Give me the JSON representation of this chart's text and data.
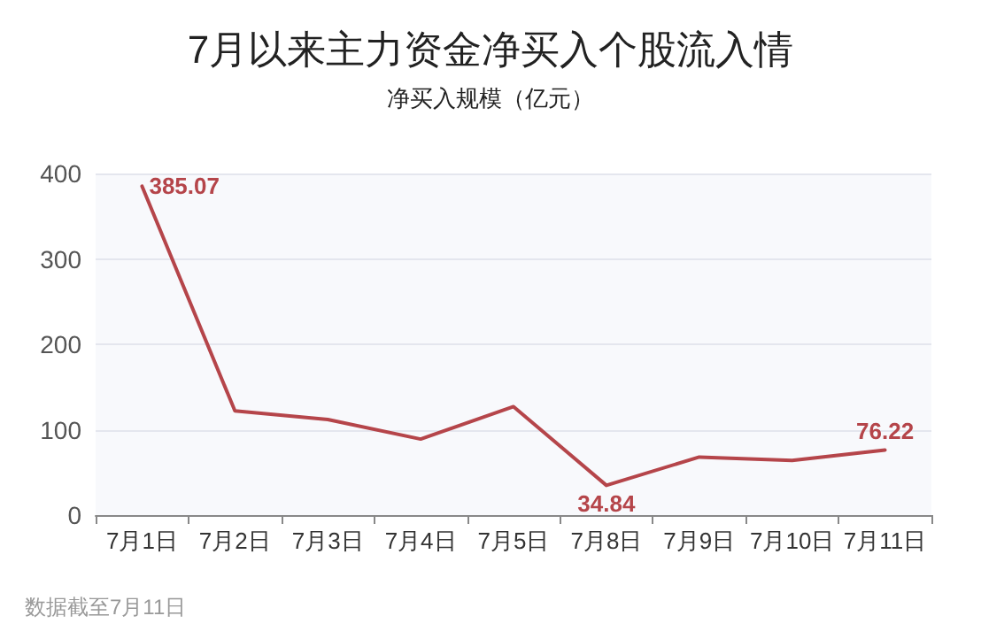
{
  "chart_data": {
    "type": "line",
    "title": "7月以来主力资金净买入个股流入情",
    "subtitle": "净买入规模（亿元）",
    "categories": [
      "7月1日",
      "7月2日",
      "7月3日",
      "7月4日",
      "7月5日",
      "7月8日",
      "7月9日",
      "7月10日",
      "7月11日"
    ],
    "series": [
      {
        "color": "#b5454a",
        "values": [
          385.07,
          122,
          112,
          89,
          127,
          34.84,
          68,
          64,
          76.22
        ],
        "value_labels": [
          "385.07",
          null,
          null,
          null,
          null,
          "34.84",
          null,
          null,
          "76.22"
        ]
      }
    ],
    "ylim": [
      0,
      400
    ],
    "yticks": [
      0,
      100,
      200,
      300,
      400
    ],
    "grid": "y",
    "marker": "none",
    "line_style": "solid",
    "annotations": [
      "数据截至7月11日"
    ]
  }
}
